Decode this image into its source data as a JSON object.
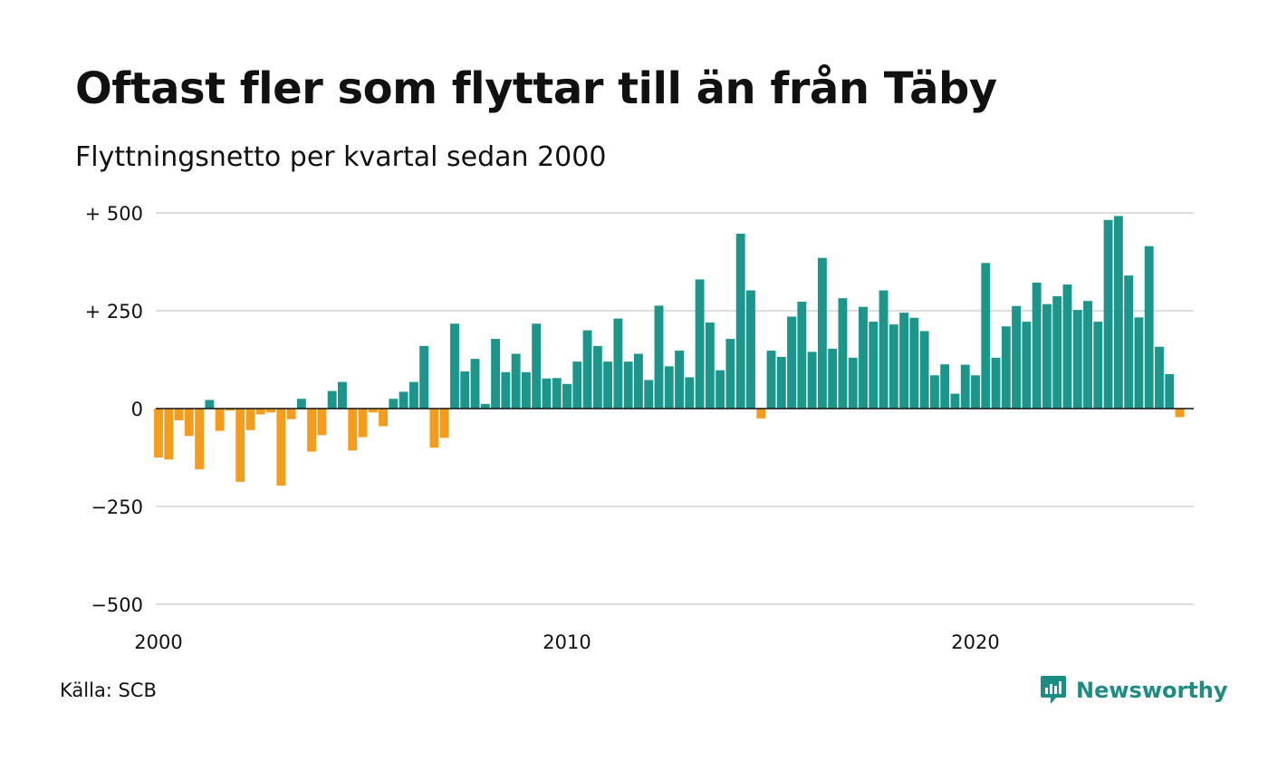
{
  "title": "Oftast fler som flyttar till än från Täby",
  "subtitle": "Flyttningsnetto per kvartal sedan 2000",
  "source": "Källa: SCB",
  "brand": {
    "name": "Newsworthy",
    "icon": "newsworthy-logo-icon",
    "color": "#1d8c82"
  },
  "chart_data": {
    "type": "bar",
    "x_unit": "quarter",
    "x_start": "2000 Q1",
    "x_ticks": [
      "2000",
      "2010",
      "2020"
    ],
    "y_ticks": [
      "+ 500",
      "+ 250",
      "0",
      "−250",
      "−500"
    ],
    "ylim": [
      -500,
      500
    ],
    "grid": true,
    "colors": {
      "positive": "#1a968a",
      "negative": "#f59c1a"
    },
    "series": [
      {
        "values": [
          -125,
          -130,
          -30,
          -70,
          -155,
          22,
          -57,
          -5,
          -187,
          -55,
          -15,
          -10,
          -197,
          -27,
          25,
          -110,
          -68,
          45,
          68,
          -107,
          -73,
          -10,
          -45,
          25,
          43,
          68,
          160,
          -100,
          -75,
          217,
          95,
          127,
          12,
          178,
          93,
          140,
          93,
          217,
          77,
          78,
          63,
          120,
          200,
          160,
          120,
          230,
          120,
          140,
          73,
          263,
          108,
          148,
          80,
          330,
          220,
          98,
          178,
          447,
          302,
          -25,
          148,
          132,
          235,
          273,
          145,
          385,
          153,
          282,
          130,
          260,
          222,
          302,
          215,
          245,
          232,
          198,
          85,
          113,
          38,
          112,
          85,
          372,
          130,
          210,
          262,
          222,
          322,
          267,
          287,
          317,
          252,
          275,
          222,
          482,
          492,
          340,
          233,
          415,
          158,
          88,
          -22
        ]
      }
    ]
  }
}
